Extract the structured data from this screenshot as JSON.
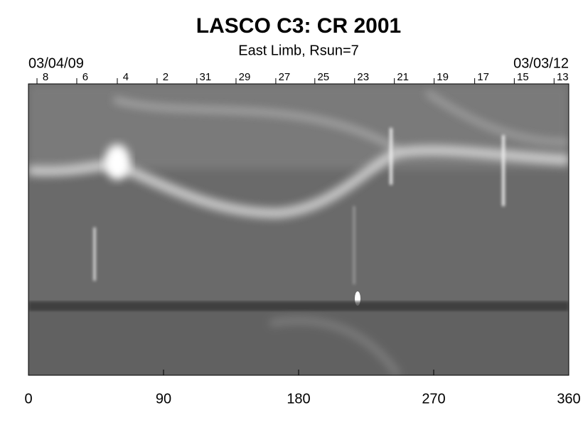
{
  "chart_data": {
    "type": "image",
    "title": "LASCO C3: CR 2001",
    "subtitle": "East Limb, Rsun=7",
    "start_date": "03/04/09",
    "end_date": "03/03/12",
    "xlim": [
      0,
      360
    ],
    "xticks": [
      0,
      90,
      180,
      270,
      360
    ],
    "top_ticks": [
      {
        "value": 5.7,
        "label": "8"
      },
      {
        "value": 32.2,
        "label": "6"
      },
      {
        "value": 59.2,
        "label": "4"
      },
      {
        "value": 85.7,
        "label": "2"
      },
      {
        "value": 112.2,
        "label": "31"
      },
      {
        "value": 138.3,
        "label": "29"
      },
      {
        "value": 164.8,
        "label": "27"
      },
      {
        "value": 190.8,
        "label": "25"
      },
      {
        "value": 217.3,
        "label": "23"
      },
      {
        "value": 243.8,
        "label": "21"
      },
      {
        "value": 270.3,
        "label": "19"
      },
      {
        "value": 297.3,
        "label": "17"
      },
      {
        "value": 323.7,
        "label": "15"
      },
      {
        "value": 350.2,
        "label": "13"
      }
    ]
  }
}
